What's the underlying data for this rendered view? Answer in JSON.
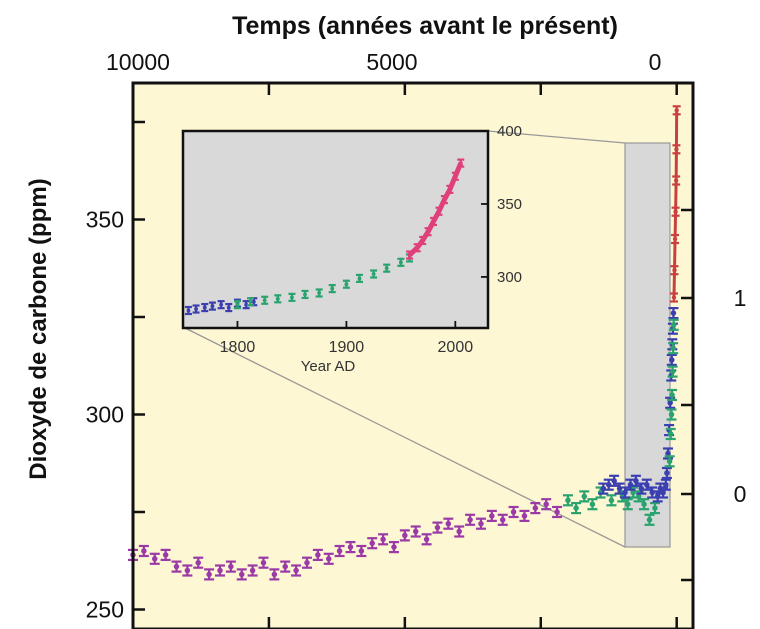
{
  "chart_data": [
    {
      "type": "scatter",
      "title": "",
      "xlabel": "Temps (années avant le présent)",
      "ylabel": "Dioxyde de carbone (ppm)",
      "x_reversed": true,
      "xlim": [
        10000,
        -300
      ],
      "ylim": [
        245,
        385
      ],
      "x_ticks": [
        10000,
        5000,
        0
      ],
      "y_ticks": [
        250,
        300,
        350
      ],
      "right_ticks": [
        "1",
        "0"
      ],
      "grid": false,
      "background": "#fdf7d4",
      "series": [
        {
          "color": "#9b3aa7",
          "x": [
            10000,
            9800,
            9600,
            9400,
            9200,
            9000,
            8800,
            8600,
            8400,
            8200,
            8000,
            7800,
            7600,
            7400,
            7200,
            7000,
            6800,
            6600,
            6400,
            6200,
            6000,
            5800,
            5600,
            5400,
            5200,
            5000,
            4800,
            4600,
            4400,
            4200,
            4000,
            3800,
            3600,
            3400,
            3200,
            3000,
            2800,
            2600,
            2400,
            2200
          ],
          "y": [
            264,
            265,
            263,
            264,
            261,
            260,
            262,
            259,
            260,
            261,
            259,
            260,
            262,
            259,
            261,
            260,
            262,
            264,
            263,
            265,
            266,
            265,
            267,
            268,
            266,
            269,
            270,
            268,
            271,
            272,
            270,
            273,
            272,
            274,
            273,
            275,
            274,
            276,
            277,
            275
          ]
        },
        {
          "color": "#2aa36f",
          "x": [
            2000,
            1850,
            1700,
            1550,
            1400,
            1200,
            1000,
            900,
            800,
            700,
            600,
            500,
            400
          ],
          "y": [
            278,
            276,
            279,
            277,
            280,
            278,
            279,
            277,
            280,
            279,
            277,
            273,
            276
          ]
        },
        {
          "color": "#3c3fb0",
          "x": [
            1350,
            1250,
            1150,
            1050,
            950,
            850,
            750,
            650,
            550,
            450,
            350,
            300,
            250,
            200,
            180,
            160,
            140,
            120,
            100,
            90,
            80,
            70,
            60
          ],
          "y": [
            281,
            282,
            283,
            281,
            280,
            282,
            283,
            281,
            282,
            280,
            279,
            281,
            280,
            282,
            285,
            290,
            296,
            303,
            310,
            314,
            318,
            322,
            326
          ]
        },
        {
          "color": "#2aa36f",
          "x": [
            130,
            110,
            95,
            85,
            75,
            65,
            55
          ],
          "y": [
            288,
            295,
            300,
            305,
            311,
            317,
            323
          ]
        },
        {
          "color": "#c94040",
          "x": [
            50,
            40,
            30,
            20,
            10,
            5,
            0
          ],
          "y": [
            330,
            337,
            345,
            352,
            360,
            368,
            378
          ]
        }
      ]
    },
    {
      "type": "scatter",
      "xlabel": "Year AD",
      "xlim": [
        1750,
        2030
      ],
      "ylim": [
        265,
        400
      ],
      "x_ticks": [
        1800,
        1900,
        2000
      ],
      "y_ticks": [
        300,
        350,
        400
      ],
      "background": "#d9d9d9",
      "series": [
        {
          "color": "#3c3fb0",
          "x": [
            1755,
            1762,
            1770,
            1777,
            1785,
            1792,
            1800,
            1808,
            1815
          ],
          "y": [
            277,
            278,
            279,
            280,
            281,
            279,
            282,
            281,
            283
          ]
        },
        {
          "color": "#2aa36f",
          "x": [
            1800,
            1812,
            1825,
            1837,
            1850,
            1862,
            1875,
            1887,
            1900,
            1912,
            1925,
            1937,
            1950,
            1958
          ],
          "y": [
            281,
            283,
            284,
            285,
            286,
            288,
            289,
            292,
            295,
            299,
            302,
            306,
            310,
            313
          ]
        },
        {
          "color": "#e0407a",
          "x": [
            1958,
            1965,
            1970,
            1975,
            1980,
            1985,
            1990,
            1995,
            2000,
            2005
          ],
          "y": [
            315,
            320,
            325,
            331,
            338,
            345,
            353,
            360,
            369,
            378
          ]
        }
      ]
    }
  ]
}
